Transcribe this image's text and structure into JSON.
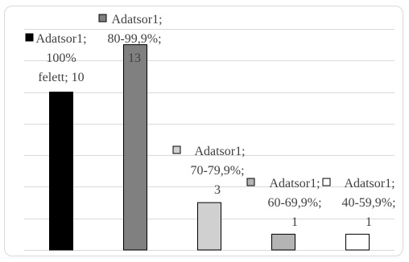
{
  "chart_data": {
    "type": "bar",
    "categories": [
      "100% felett",
      "80-99,9%",
      "70-79,9%",
      "60-69,9%",
      "40-59,9%"
    ],
    "series": [
      {
        "name": "Adatsor1",
        "values": [
          10,
          13,
          3,
          1,
          1
        ]
      }
    ],
    "bar_colors": [
      "#000000",
      "#808080",
      "#d0d0d0",
      "#b4b4b4",
      "#ffffff"
    ],
    "ylim": [
      0,
      14
    ],
    "grid": true,
    "data_labels": [
      [
        "Adatsor1;",
        "100%",
        "felett; 10"
      ],
      [
        "Adatsor1;",
        "80-99,9%;",
        "13"
      ],
      [
        "Adatsor1;",
        "70-79,9%;",
        "3"
      ],
      [
        "Adatsor1;",
        "60-69,9%;",
        "1"
      ],
      [
        "Adatsor1;",
        "40-59,9%;",
        "1"
      ]
    ],
    "title": "",
    "xlabel": "",
    "ylabel": ""
  }
}
